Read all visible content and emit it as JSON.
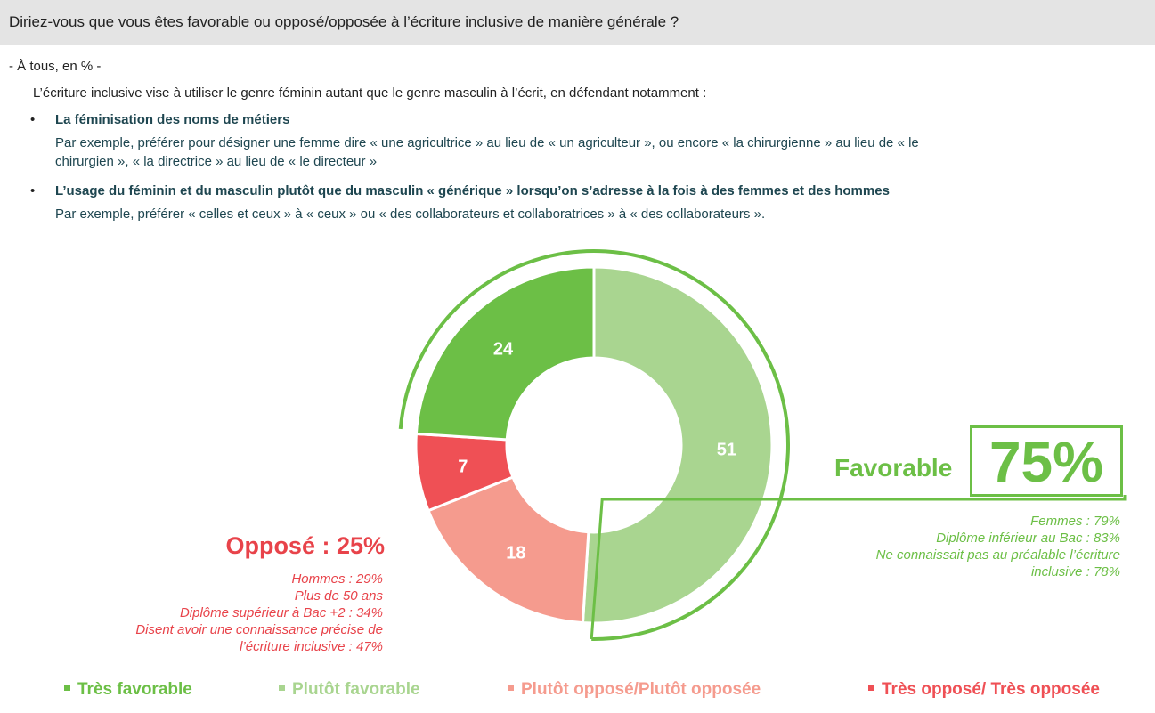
{
  "header": {
    "question": "Diriez-vous que vous êtes favorable ou opposé/opposée à l’écriture inclusive de manière générale ?"
  },
  "base": "- À tous, en % -",
  "intro": "L’écriture inclusive vise à utiliser le genre féminin autant que le genre masculin à l’écrit, en défendant notamment :",
  "bullets": [
    {
      "symbol": "•",
      "title": "La féminisation des noms de métiers",
      "text_lines": [
        "Par exemple, préférer pour désigner une femme dire « une agricultrice » au lieu de « un agriculteur », ou encore « la chirurgienne » au lieu de « le",
        "chirurgien », « la directrice » au lieu de « le directeur »"
      ]
    },
    {
      "symbol": "•",
      "title": "L’usage du féminin et du masculin plutôt que du masculin « générique » lorsqu’on s’adresse à la fois à des femmes et des hommes",
      "text_lines": [
        "Par exemple, préférer « celles et ceux » à « ceux » ou « des collaborateurs et collaboratrices » à « des collaborateurs »."
      ]
    }
  ],
  "favorable": {
    "label": "Favorable",
    "value": "75%",
    "notes": [
      "Femmes : 79%",
      "Diplôme inférieur au Bac : 83%",
      "Ne connaissait pas au préalable l’écriture",
      "inclusive : 78%"
    ],
    "color": "#6cbf46"
  },
  "oppose": {
    "title": "Opposé : 25%",
    "notes": [
      "Hommes : 29%",
      "Plus de 50 ans",
      "Diplôme supérieur à Bac +2 : 34%",
      "Disent avoir une connaissance précise de",
      "l’écriture inclusive : 47%"
    ],
    "color": "#e8434a"
  },
  "chart_data": {
    "type": "pie",
    "variant": "donut",
    "categories": [
      "Très favorable",
      "Plutôt favorable",
      "Plutôt opposé/Plutôt opposée",
      "Très opposé/ Très opposée"
    ],
    "values": [
      24,
      51,
      18,
      7
    ],
    "colors": [
      "#6cbf46",
      "#a9d590",
      "#f59b8e",
      "#ef5055"
    ],
    "legend_position": "bottom"
  },
  "legend": [
    {
      "label": "Très favorable",
      "color": "#6cbf46"
    },
    {
      "label": "Plutôt favorable",
      "color": "#a9d590"
    },
    {
      "label": "Plutôt opposé/Plutôt opposée",
      "color": "#f59b8e"
    },
    {
      "label": "Très opposé/ Très opposée",
      "color": "#ef5055"
    }
  ]
}
